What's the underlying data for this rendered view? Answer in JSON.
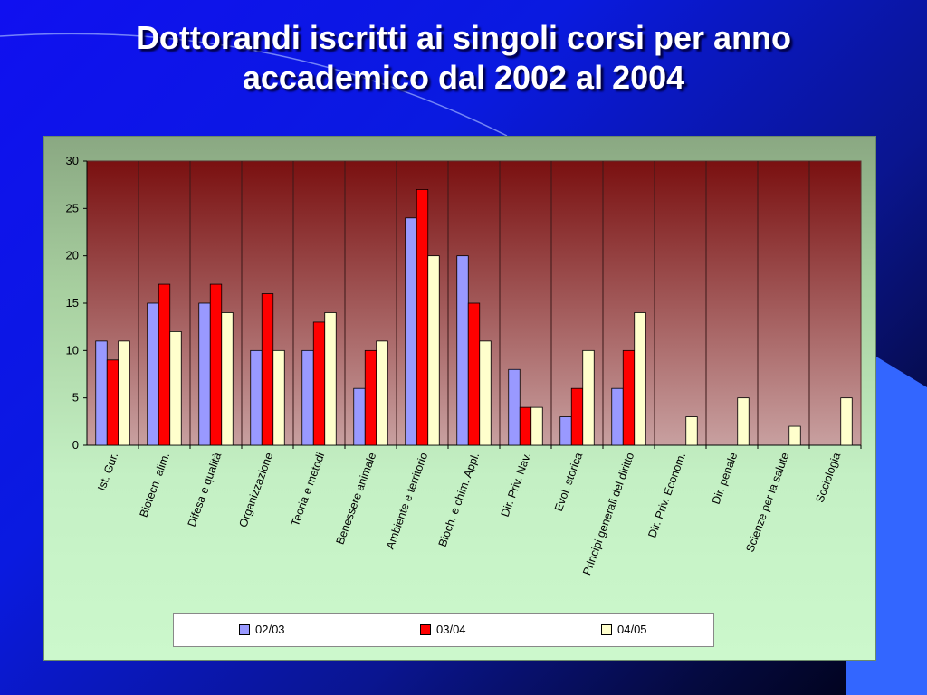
{
  "title": {
    "line1": "Dottorandi iscritti ai singoli corsi per anno",
    "line2": "accademico dal 2002 al 2004"
  },
  "colors": {
    "series_1": "#9999ff",
    "series_2": "#ff0000",
    "series_3": "#ffffcc",
    "plot_top": "#7a1010",
    "plot_bottom": "#c8a0a0"
  },
  "chart_data": {
    "type": "bar",
    "title": "",
    "xlabel": "",
    "ylabel": "",
    "ylim": [
      0,
      30
    ],
    "yticks": [
      0,
      5,
      10,
      15,
      20,
      25,
      30
    ],
    "grid": "vertical category separators",
    "legend_position": "bottom",
    "categories": [
      "Ist. Gur.",
      "Biotecn. alim.",
      "Difesa e qualità",
      "Organizzazione",
      "Teoria e metodi",
      "Benessere animale",
      "Ambiente e territorio",
      "Bioch. e chim. Appl.",
      "Dir. Priv. Nav.",
      "Evol. storica",
      "Principi generali del diritto",
      "Dir. Priv. Econom.",
      "Dir. penale",
      "Scienze per la salute",
      "Sociologia"
    ],
    "series": [
      {
        "name": "02/03",
        "values": [
          11,
          15,
          15,
          10,
          10,
          6,
          24,
          20,
          8,
          3,
          6,
          0,
          0,
          0,
          0
        ]
      },
      {
        "name": "03/04",
        "values": [
          9,
          17,
          17,
          16,
          13,
          10,
          27,
          15,
          4,
          6,
          10,
          0,
          0,
          0,
          0
        ]
      },
      {
        "name": "04/05",
        "values": [
          11,
          12,
          14,
          10,
          14,
          11,
          20,
          11,
          4,
          10,
          14,
          3,
          5,
          2,
          5
        ]
      }
    ]
  }
}
